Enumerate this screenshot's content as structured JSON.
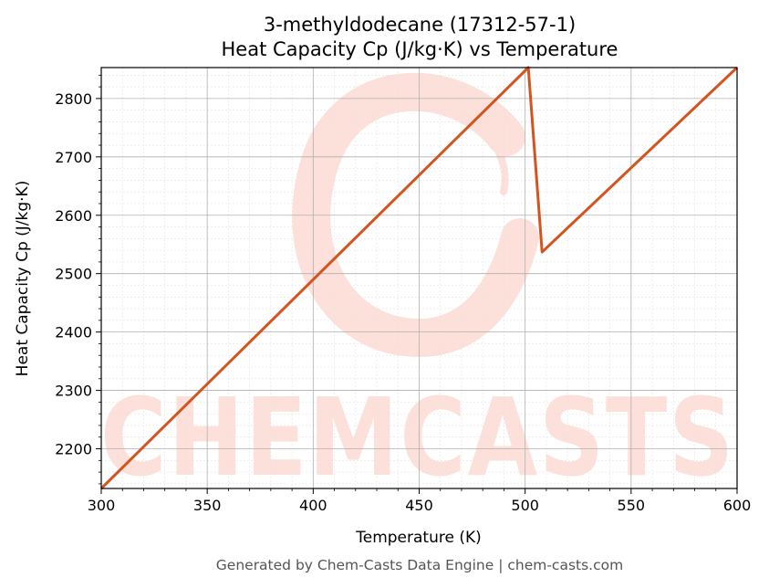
{
  "chart_data": {
    "type": "line",
    "title": "3-methyldodecane (17312-57-1)",
    "subtitle": "Heat Capacity Cp (J/kg·K) vs Temperature",
    "xlabel": "Temperature (K)",
    "ylabel": "Heat Capacity Cp (J/kg·K)",
    "xlim": [
      300,
      600
    ],
    "ylim": [
      2132,
      2853
    ],
    "xticks": [
      300,
      350,
      400,
      450,
      500,
      550,
      600
    ],
    "yticks": [
      2200,
      2300,
      2400,
      2500,
      2600,
      2700,
      2800
    ],
    "grid": true,
    "series": [
      {
        "color": "#d4541f",
        "x": [
          300,
          501.5,
          508,
          600
        ],
        "y": [
          2132,
          2853,
          2537,
          2853
        ]
      }
    ]
  },
  "watermark": {
    "text": "CHEMCASTS",
    "color": "#fde0da"
  },
  "footer": "Generated by Chem-Casts Data Engine | chem-casts.com"
}
